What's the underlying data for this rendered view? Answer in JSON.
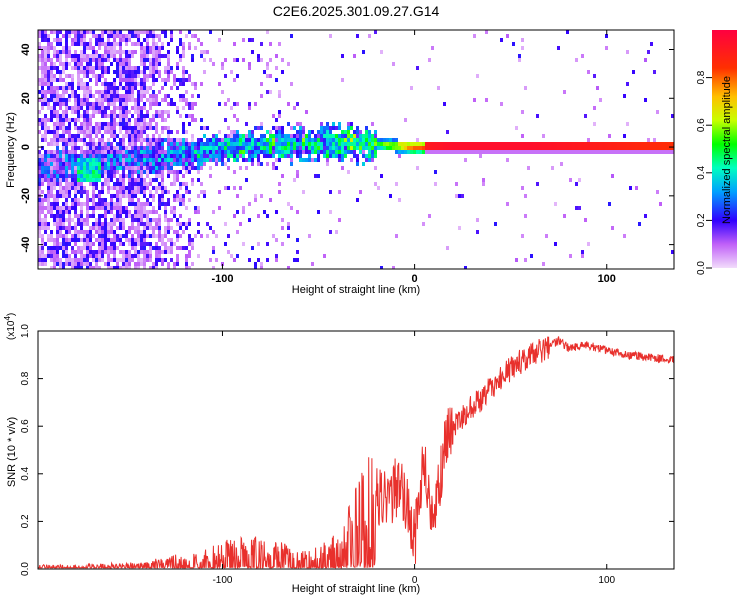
{
  "chart_data": [
    {
      "type": "heatmap",
      "title": "C2E6.2025.301.09.27.G14",
      "xlabel": "Height of straight line (km)",
      "ylabel": "Frequency (Hz)",
      "xlim": [
        -196,
        135
      ],
      "ylim": [
        -50,
        48
      ],
      "x_ticks": [
        -100,
        0,
        100
      ],
      "y_ticks": [
        40,
        20,
        0,
        -20,
        -40
      ],
      "colorbar": {
        "label": "Normalized spectral amplitude",
        "range": [
          0.0,
          1.0
        ],
        "ticks": [
          0.0,
          0.2,
          0.4,
          0.6,
          0.8
        ],
        "colors": [
          "#e8c8f8",
          "#a000f0",
          "#3000ff",
          "#00a0ff",
          "#00ffc0",
          "#00ff00",
          "#c8ff00",
          "#ffc000",
          "#ff3000",
          "#ff0040"
        ]
      },
      "ridge": {
        "x": [
          -196,
          -140,
          -120,
          -100,
          -80,
          -60,
          -40,
          -20,
          0,
          20,
          60,
          100,
          135
        ],
        "center_hz": [
          -8,
          -4,
          -3,
          -1,
          1,
          1,
          2,
          1,
          0,
          0,
          0,
          0,
          0
        ],
        "amplitude": [
          0.25,
          0.3,
          0.35,
          0.4,
          0.45,
          0.45,
          0.5,
          0.55,
          0.9,
          0.95,
          0.95,
          0.9,
          0.85
        ]
      }
    },
    {
      "type": "line",
      "xlabel": "Height of straight line (km)",
      "ylabel": "SNR (10 * v/v)",
      "multiplier_label": "(x10",
      "multiplier_exp": "4",
      "xlim": [
        -196,
        135
      ],
      "ylim": [
        0.0,
        1.0
      ],
      "x_ticks": [
        -100,
        0,
        100
      ],
      "y_ticks": [
        0.0,
        0.2,
        0.4,
        0.6,
        0.8,
        1.0
      ],
      "color": "#e8302c",
      "series": [
        {
          "name": "SNR",
          "x": [
            -196,
            -180,
            -160,
            -140,
            -130,
            -120,
            -110,
            -100,
            -90,
            -80,
            -70,
            -60,
            -50,
            -40,
            -35,
            -30,
            -25,
            -20,
            -15,
            -10,
            -5,
            0,
            5,
            10,
            15,
            20,
            30,
            40,
            50,
            60,
            70,
            75,
            80,
            90,
            100,
            110,
            120,
            135
          ],
          "y": [
            0.01,
            0.01,
            0.015,
            0.02,
            0.03,
            0.04,
            0.05,
            0.07,
            0.08,
            0.08,
            0.07,
            0.04,
            0.06,
            0.09,
            0.14,
            0.22,
            0.28,
            0.3,
            0.28,
            0.34,
            0.3,
            0.12,
            0.45,
            0.15,
            0.5,
            0.6,
            0.68,
            0.76,
            0.84,
            0.9,
            0.93,
            0.96,
            0.93,
            0.94,
            0.92,
            0.9,
            0.89,
            0.88
          ]
        }
      ],
      "x_axis_label_shown": "Height of straight line (km)"
    }
  ]
}
